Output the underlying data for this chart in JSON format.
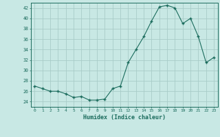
{
  "x": [
    0,
    1,
    2,
    3,
    4,
    5,
    6,
    7,
    8,
    9,
    10,
    11,
    12,
    13,
    14,
    15,
    16,
    17,
    18,
    19,
    20,
    21,
    22,
    23
  ],
  "y": [
    27.0,
    26.5,
    26.0,
    26.0,
    25.5,
    24.8,
    25.0,
    24.3,
    24.3,
    24.5,
    26.5,
    27.0,
    31.5,
    34.0,
    36.5,
    39.5,
    42.2,
    42.5,
    42.0,
    39.0,
    40.0,
    36.5,
    31.5,
    32.5
  ],
  "xlabel": "Humidex (Indice chaleur)",
  "xlim": [
    -0.5,
    23.5
  ],
  "ylim": [
    23,
    43
  ],
  "yticks": [
    24,
    26,
    28,
    30,
    32,
    34,
    36,
    38,
    40,
    42
  ],
  "xticks": [
    0,
    1,
    2,
    3,
    4,
    5,
    6,
    7,
    8,
    9,
    10,
    11,
    12,
    13,
    14,
    15,
    16,
    17,
    18,
    19,
    20,
    21,
    22,
    23
  ],
  "line_color": "#1a6b5c",
  "marker_color": "#1a6b5c",
  "bg_color": "#c8e8e4",
  "grid_color": "#a8ccc8",
  "axes_color": "#1a6b5c",
  "tick_label_color": "#1a6b5c",
  "xlabel_color": "#1a6b5c"
}
